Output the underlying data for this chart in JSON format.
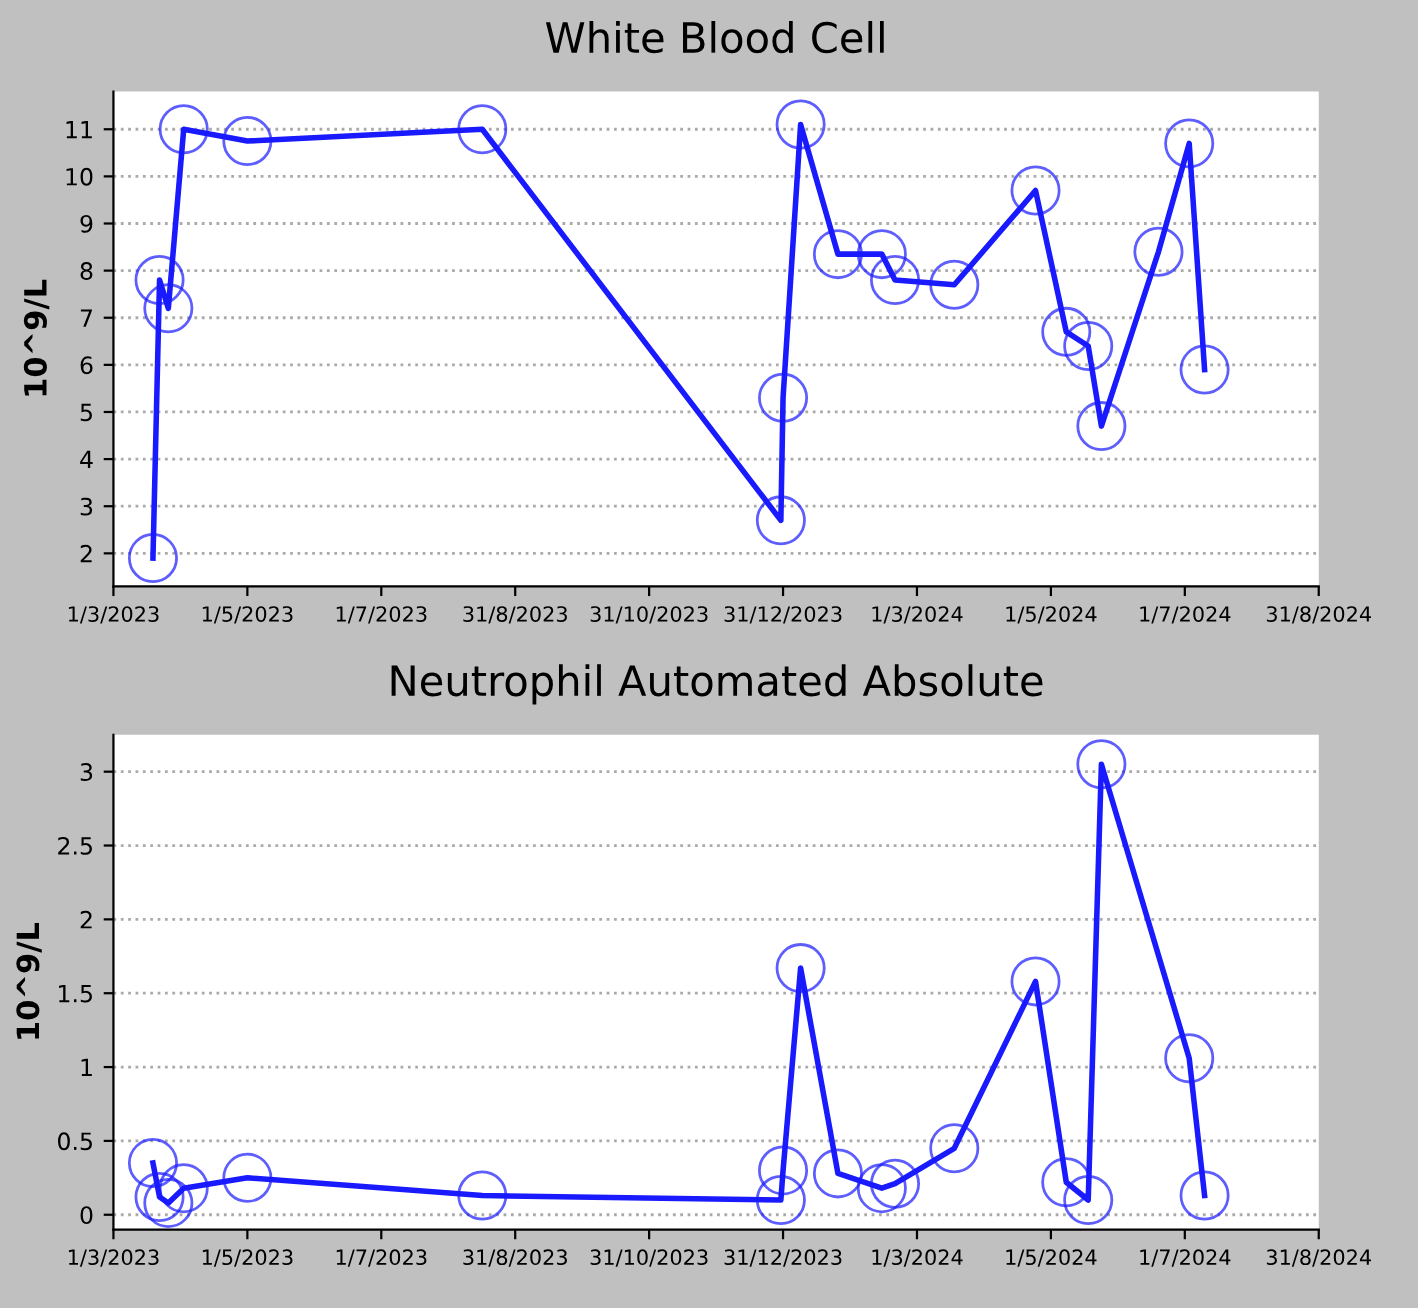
{
  "chart_data": [
    {
      "type": "line",
      "title": "White Blood Cell",
      "ylabel": "10^9/L",
      "x": [
        "2023-03-19",
        "2023-03-22",
        "2023-03-26",
        "2023-04-02",
        "2023-05-01",
        "2023-08-16",
        "2023-12-30",
        "2023-12-31",
        "2024-01-08",
        "2024-01-25",
        "2024-02-14",
        "2024-02-20",
        "2024-03-18",
        "2024-04-24",
        "2024-05-08",
        "2024-05-18",
        "2024-05-24",
        "2024-06-19",
        "2024-07-03",
        "2024-07-10"
      ],
      "series": [
        {
          "color": "#1a1aff",
          "values": [
            1.9,
            7.8,
            7.2,
            11.0,
            10.75,
            11.0,
            2.7,
            5.3,
            11.1,
            8.35,
            8.35,
            7.8,
            7.7,
            9.7,
            6.7,
            6.4,
            4.7,
            8.4,
            10.7,
            5.9
          ]
        }
      ],
      "xlim": [
        "2023-03-01",
        "2024-08-31"
      ],
      "xticks": [
        {
          "value": "2023-03-01",
          "label": "1/3/2023"
        },
        {
          "value": "2023-05-01",
          "label": "1/5/2023"
        },
        {
          "value": "2023-07-01",
          "label": "1/7/2023"
        },
        {
          "value": "2023-08-31",
          "label": "31/8/2023"
        },
        {
          "value": "2023-10-31",
          "label": "31/10/2023"
        },
        {
          "value": "2023-12-31",
          "label": "31/12/2023"
        },
        {
          "value": "2024-03-01",
          "label": "1/3/2024"
        },
        {
          "value": "2024-05-01",
          "label": "1/5/2024"
        },
        {
          "value": "2024-07-01",
          "label": "1/7/2024"
        },
        {
          "value": "2024-08-31",
          "label": "31/8/2024"
        }
      ],
      "ylim": [
        1.3,
        11.8
      ],
      "yticks": [
        2,
        3,
        4,
        5,
        6,
        7,
        8,
        9,
        10,
        11
      ],
      "grid": "y",
      "marker": "circle",
      "line_style": "solid"
    },
    {
      "type": "line",
      "title": "Neutrophil Automated Absolute",
      "ylabel": "10^9/L",
      "x": [
        "2023-03-19",
        "2023-03-22",
        "2023-03-26",
        "2023-04-02",
        "2023-05-01",
        "2023-08-16",
        "2023-12-30",
        "2023-12-31",
        "2024-01-08",
        "2024-01-25",
        "2024-02-14",
        "2024-02-20",
        "2024-03-18",
        "2024-04-24",
        "2024-05-08",
        "2024-05-18",
        "2024-05-24",
        "2024-07-03",
        "2024-07-10"
      ],
      "series": [
        {
          "color": "#1a1aff",
          "values": [
            0.35,
            0.12,
            0.08,
            0.18,
            0.25,
            0.13,
            0.1,
            0.3,
            1.67,
            0.28,
            0.18,
            0.21,
            0.45,
            1.58,
            0.22,
            0.1,
            3.05,
            1.06,
            0.13
          ]
        }
      ],
      "xlim": [
        "2023-03-01",
        "2024-08-31"
      ],
      "xticks": [
        {
          "value": "2023-03-01",
          "label": "1/3/2023"
        },
        {
          "value": "2023-05-01",
          "label": "1/5/2023"
        },
        {
          "value": "2023-07-01",
          "label": "1/7/2023"
        },
        {
          "value": "2023-08-31",
          "label": "31/8/2023"
        },
        {
          "value": "2023-10-31",
          "label": "31/10/2023"
        },
        {
          "value": "2023-12-31",
          "label": "31/12/2023"
        },
        {
          "value": "2024-03-01",
          "label": "1/3/2024"
        },
        {
          "value": "2024-05-01",
          "label": "1/5/2024"
        },
        {
          "value": "2024-07-01",
          "label": "1/7/2024"
        },
        {
          "value": "2024-08-31",
          "label": "31/8/2024"
        }
      ],
      "ylim": [
        -0.1,
        3.25
      ],
      "yticks": [
        0,
        0.5,
        1,
        1.5,
        2,
        2.5,
        3
      ],
      "grid": "y",
      "marker": "circle",
      "line_style": "solid"
    }
  ]
}
